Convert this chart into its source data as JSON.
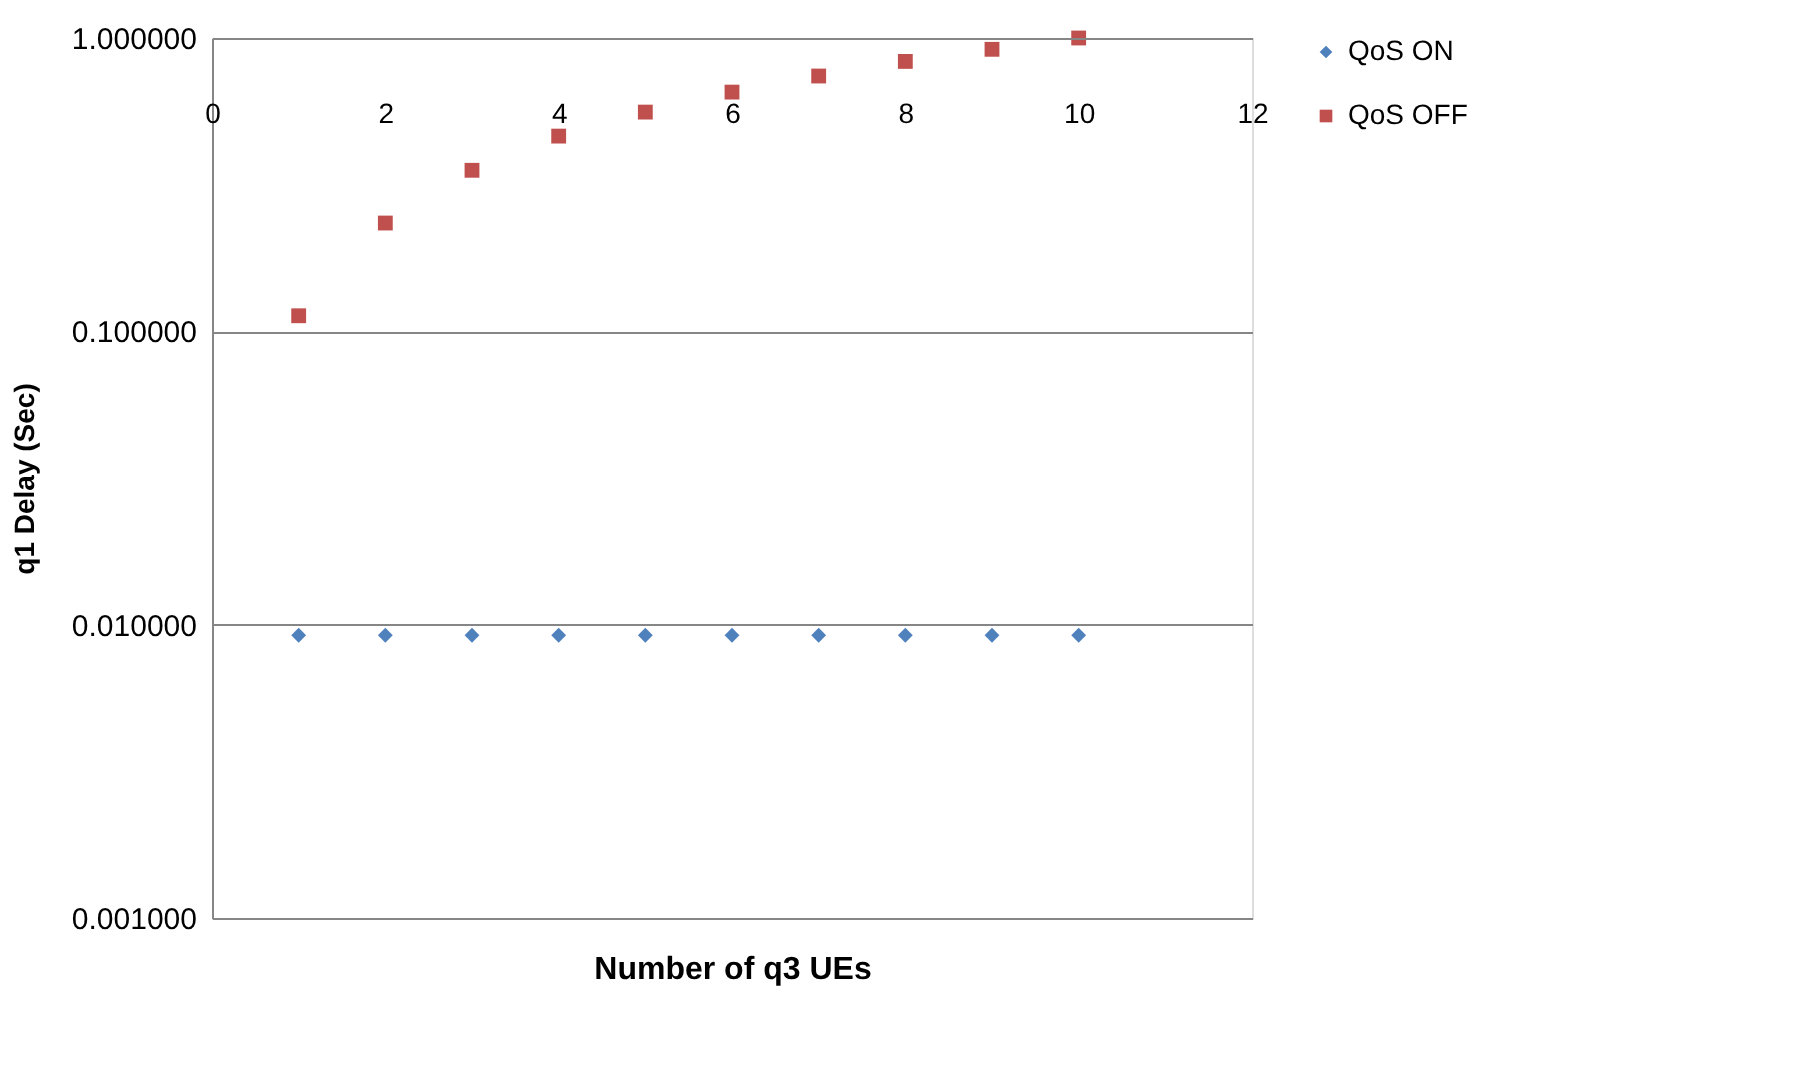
{
  "chart_data": {
    "type": "scatter",
    "xlabel": "Number of q3 UEs",
    "ylabel": "q1 Delay (Sec)",
    "x": [
      1,
      2,
      3,
      4,
      5,
      6,
      7,
      8,
      9,
      10
    ],
    "series": [
      {
        "name": "QoS ON",
        "color": "#4f81bd",
        "marker": "diamond",
        "values": [
          0.0092,
          0.0092,
          0.0092,
          0.0092,
          0.0092,
          0.0092,
          0.0092,
          0.0092,
          0.0092,
          0.0092
        ]
      },
      {
        "name": "QoS OFF",
        "color": "#c0504d",
        "marker": "square",
        "values": [
          0.113,
          0.234,
          0.354,
          0.463,
          0.559,
          0.654,
          0.742,
          0.832,
          0.915,
          1.0
        ]
      }
    ],
    "xlim": [
      0,
      12
    ],
    "xticks": [
      0,
      2,
      4,
      6,
      8,
      10,
      12
    ],
    "ylim": [
      0.001,
      1
    ],
    "yticks": [
      {
        "value": 0.001,
        "label": "0.001000"
      },
      {
        "value": 0.01,
        "label": "0.010000"
      },
      {
        "value": 0.1,
        "label": "0.100000"
      },
      {
        "value": 1,
        "label": "1.000000"
      }
    ],
    "log": "y",
    "grid": "y",
    "legend": "right"
  }
}
